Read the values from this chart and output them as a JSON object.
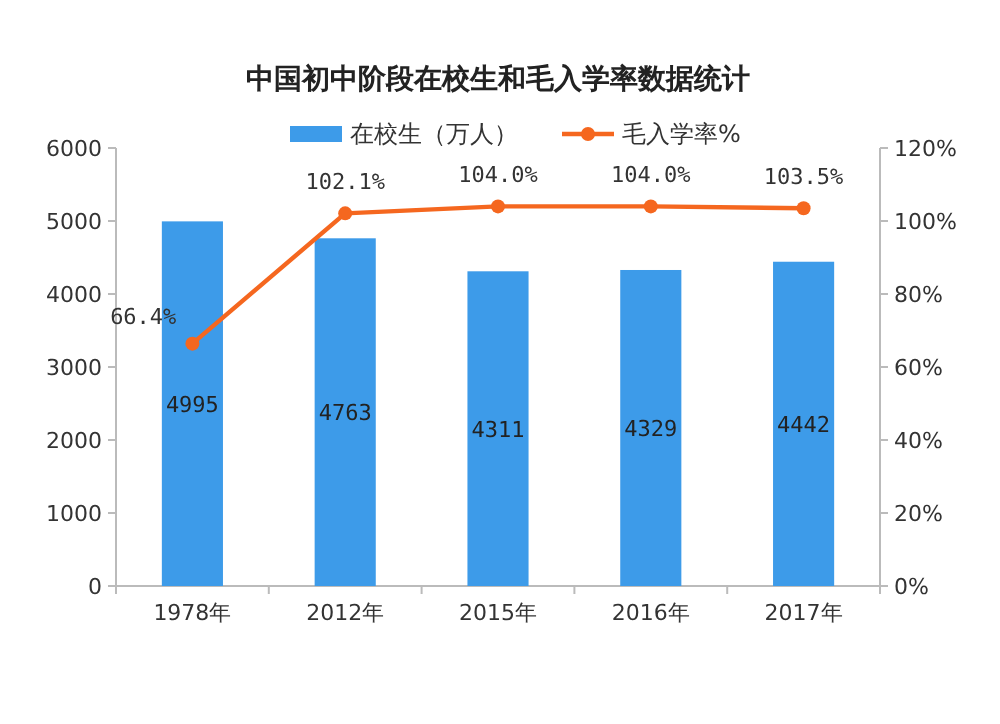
{
  "chart_data": {
    "type": "bar",
    "title": "中国初中阶段在校生和毛入学率数据统计",
    "categories": [
      "1978年",
      "2012年",
      "2015年",
      "2016年",
      "2017年"
    ],
    "series": [
      {
        "name": "在校生（万人）",
        "color": "#3d9be9",
        "values": [
          4995,
          4763,
          4311,
          4329,
          4442
        ],
        "value_labels": [
          "4995",
          "4763",
          "4311",
          "4329",
          "4442"
        ]
      },
      {
        "name": "毛入学率%",
        "type": "line",
        "axis": "y2",
        "color": "#f5671f",
        "marker": "circle",
        "values": [
          66.4,
          102.1,
          104.0,
          104.0,
          103.5
        ],
        "value_labels": [
          "66.4%",
          "102.1%",
          "104.0%",
          "104.0%",
          "103.5%"
        ]
      }
    ],
    "ylim": [
      0,
      6000
    ],
    "yticks": [
      0,
      1000,
      2000,
      3000,
      4000,
      5000,
      6000
    ],
    "y2lim": [
      0,
      120
    ],
    "y2ticks": [
      {
        "value": 0,
        "label": "0%"
      },
      {
        "value": 20,
        "label": "20%"
      },
      {
        "value": 40,
        "label": "40%"
      },
      {
        "value": 60,
        "label": "60%"
      },
      {
        "value": 80,
        "label": "80%"
      },
      {
        "value": 100,
        "label": "100%"
      },
      {
        "value": 120,
        "label": "120%"
      }
    ],
    "legend": "top",
    "grid": false
  }
}
